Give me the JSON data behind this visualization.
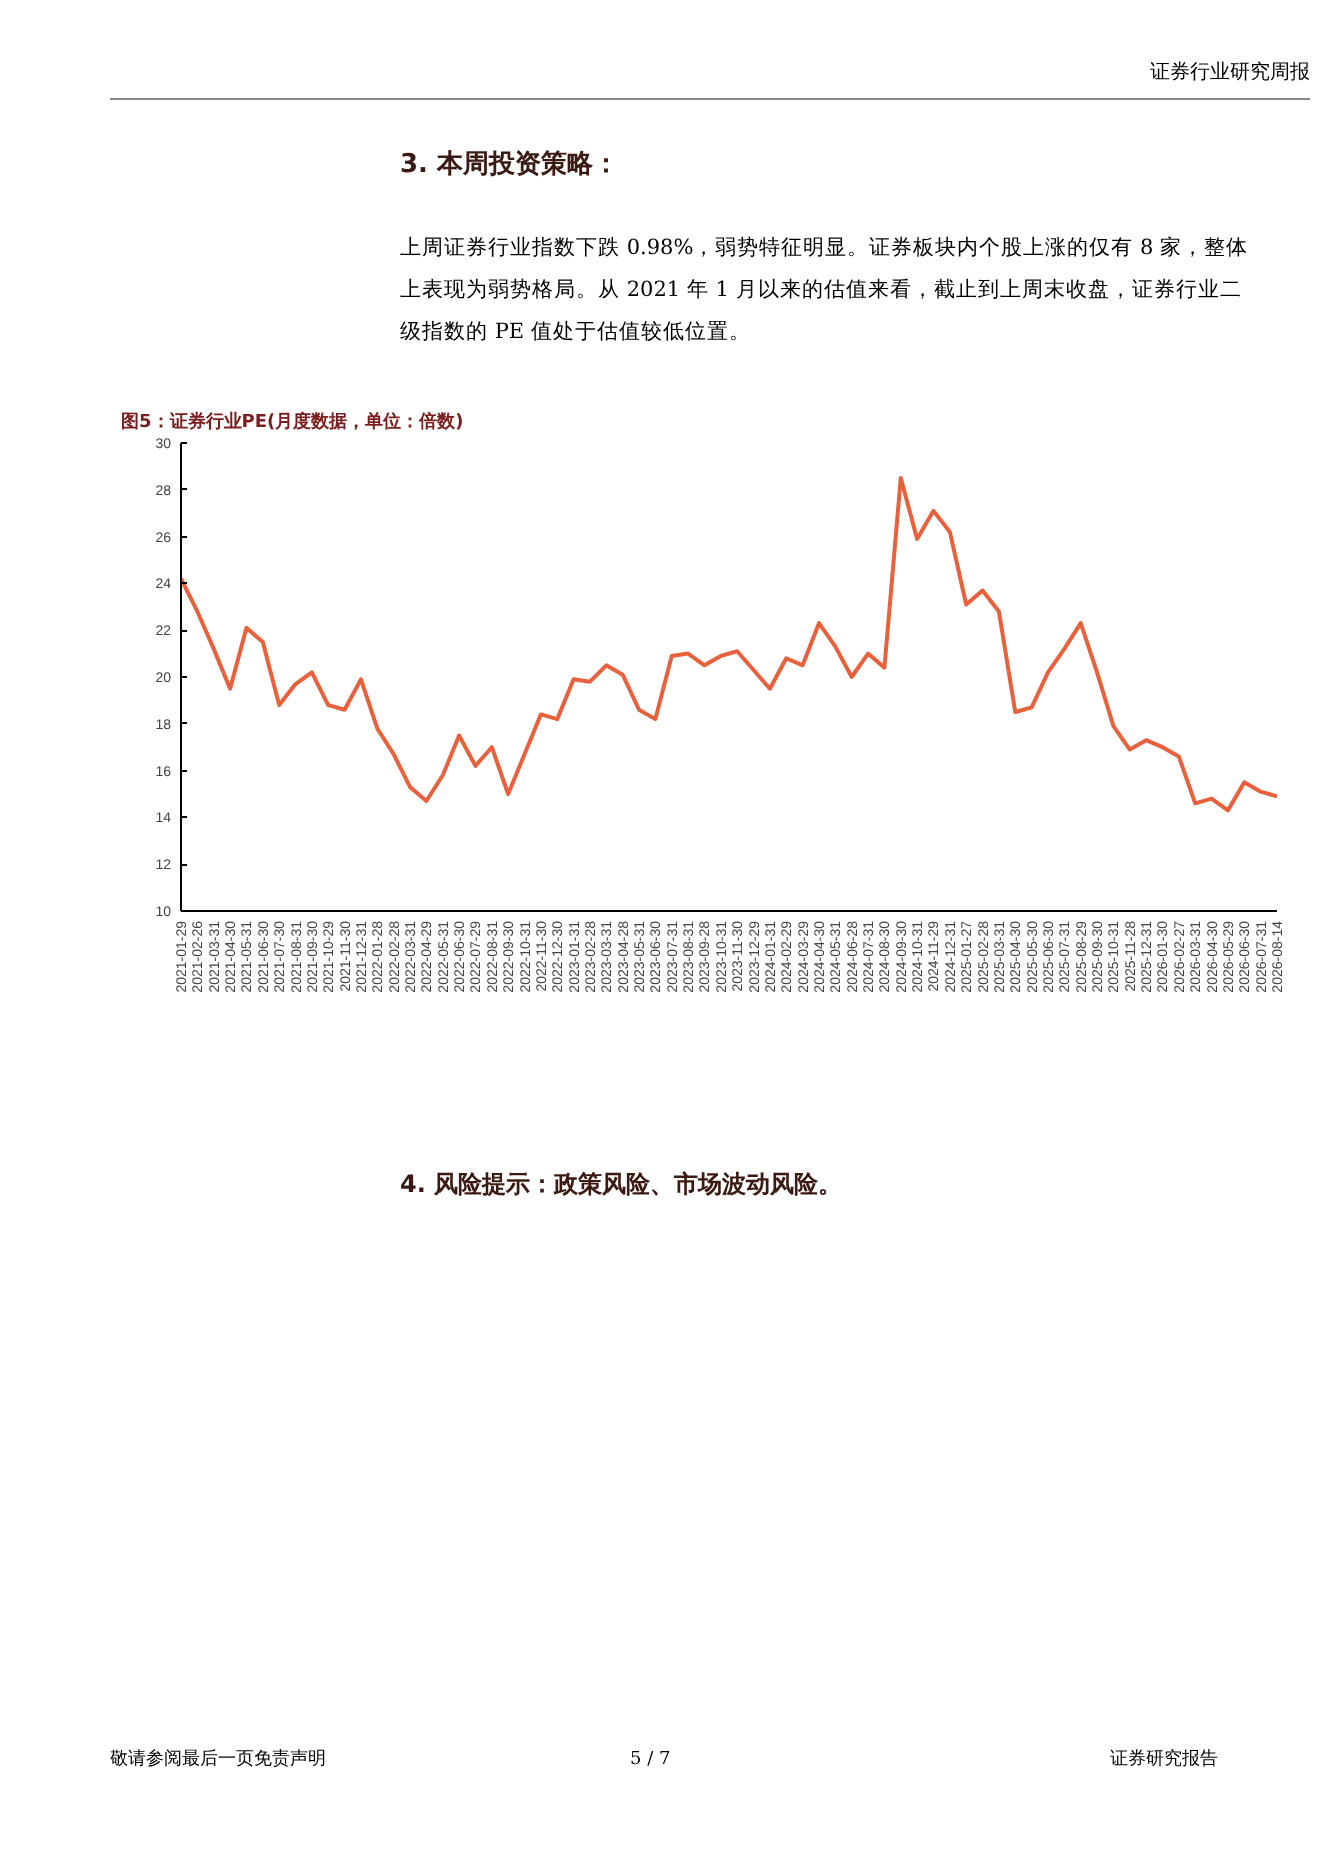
{
  "chart_data": {
    "type": "line",
    "title": "图5：证券行业PE(月度数据，单位：倍数)",
    "annotations": [
      "证券行业研究周报",
      "3. 本周投资策略：",
      "上周证券行业指数下跌 0.98%，弱势特征明显。证券板块内个股上涨的仅有 8 家，整体上表现为弱势格局。从 2021 年 1 月以来的估值来看，截止到上周末收盘，证券行业二级指数的 PE 值处于估值较低位置。",
      "4. 风险提示：政策风险、市场波动风险。",
      "敬请参阅最后一页免责声明",
      "5 / 7",
      "证券研究报告"
    ],
    "categories": [
      "2021-01-29",
      "2021-02-26",
      "2021-03-31",
      "2021-04-30",
      "2021-05-31",
      "2021-06-30",
      "2021-07-30",
      "2021-08-31",
      "2021-09-30",
      "2021-10-29",
      "2021-11-30",
      "2021-12-31",
      "2022-01-28",
      "2022-02-28",
      "2022-03-31",
      "2022-04-29",
      "2022-05-31",
      "2022-06-30",
      "2022-07-29",
      "2022-08-31",
      "2022-09-30",
      "2022-10-31",
      "2022-11-30",
      "2022-12-30",
      "2023-01-31",
      "2023-02-28",
      "2023-03-31",
      "2023-04-28",
      "2023-05-31",
      "2023-06-30",
      "2023-07-31",
      "2023-08-31",
      "2023-09-28",
      "2023-10-31",
      "2023-11-30",
      "2023-12-29",
      "2024-01-31",
      "2024-02-29",
      "2024-03-29",
      "2024-04-30",
      "2024-05-31",
      "2024-06-28",
      "2024-07-31",
      "2024-08-30",
      "2024-09-30",
      "2024-10-31",
      "2024-11-29",
      "2024-12-31",
      "2025-01-27",
      "2025-02-28",
      "2025-03-31",
      "2025-04-30",
      "2025-05-30",
      "2025-06-30",
      "2025-07-31",
      "2025-08-29",
      "2025-09-30",
      "2025-10-31",
      "2025-11-28",
      "2025-12-31",
      "2026-01-30",
      "2026-02-27",
      "2026-03-31",
      "2026-04-30",
      "2026-05-29",
      "2026-06-30",
      "2026-07-31",
      "2026-08-14"
    ],
    "series": [
      {
        "color": "#e8603c",
        "values": [
          24.2,
          22.8,
          21.2,
          19.5,
          22.1,
          21.5,
          18.8,
          19.7,
          20.2,
          18.8,
          18.6,
          19.9,
          17.8,
          16.7,
          15.3,
          14.7,
          15.8,
          17.5,
          16.2,
          17.0,
          15.0,
          16.7,
          18.4,
          18.2,
          19.9,
          19.8,
          20.5,
          20.1,
          18.6,
          18.2,
          20.9,
          21.0,
          20.5,
          20.9,
          21.1,
          20.3,
          19.5,
          20.8,
          20.5,
          22.3,
          21.3,
          20.0,
          21.0,
          20.4,
          28.5,
          25.9,
          27.1,
          26.2,
          23.1,
          23.7,
          22.8,
          18.5,
          18.7,
          20.2,
          21.2,
          22.3,
          20.2,
          17.9,
          16.9,
          17.3,
          17.0,
          16.6,
          14.6,
          14.8,
          14.3,
          15.5,
          15.1,
          14.9
        ]
      }
    ],
    "ylim": [
      10,
      30
    ],
    "yticks": [
      10,
      12,
      14,
      16,
      18,
      20,
      22,
      24,
      26,
      28,
      30
    ],
    "grid": false
  }
}
